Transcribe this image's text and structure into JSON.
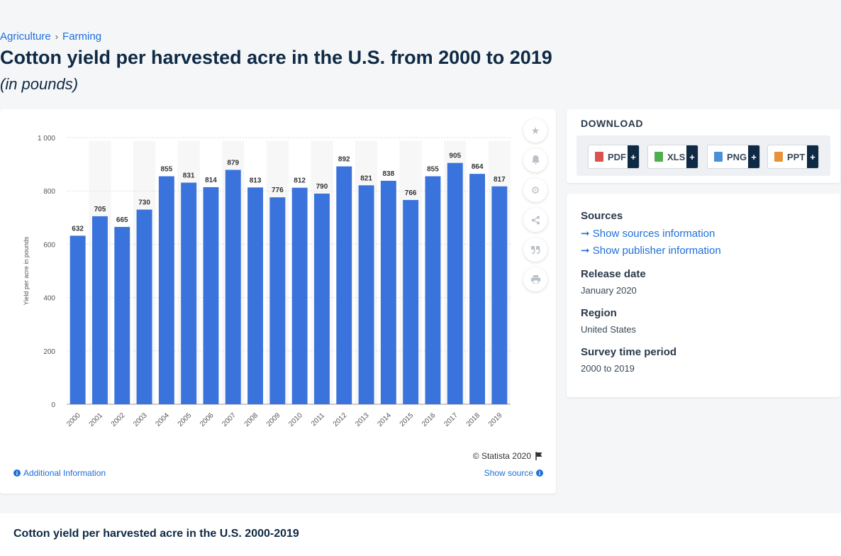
{
  "breadcrumb": {
    "items": [
      "Agriculture",
      "Farming"
    ],
    "separator": "›"
  },
  "page": {
    "title": "Cotton yield per harvested acre in the U.S. from 2000 to 2019",
    "subtitle": "(in pounds)"
  },
  "chart_card": {
    "copyright": "© Statista 2020",
    "additional_info": "Additional Information",
    "show_source": "Show source"
  },
  "download": {
    "title": "DOWNLOAD",
    "buttons": [
      {
        "label": "PDF",
        "color": "#d9534f"
      },
      {
        "label": "XLS",
        "color": "#4caf50"
      },
      {
        "label": "PNG",
        "color": "#4a90d9"
      },
      {
        "label": "PPT",
        "color": "#e8903a"
      }
    ],
    "plus": "+"
  },
  "info": {
    "sources_heading": "Sources",
    "show_sources": "Show sources information",
    "show_publisher": "Show publisher information",
    "release_heading": "Release date",
    "release_value": "January 2020",
    "region_heading": "Region",
    "region_value": "United States",
    "survey_heading": "Survey time period",
    "survey_value": "2000 to 2019"
  },
  "bottom": {
    "title": "Cotton yield per harvested acre in the U.S. 2000-2019"
  },
  "chart_data": {
    "type": "bar",
    "categories": [
      "2000",
      "2001",
      "2002",
      "2003",
      "2004",
      "2005",
      "2006",
      "2007",
      "2008",
      "2009",
      "2010",
      "2011",
      "2012",
      "2013",
      "2014",
      "2015",
      "2016",
      "2017",
      "2018",
      "2019"
    ],
    "values": [
      632,
      705,
      665,
      730,
      855,
      831,
      814,
      879,
      813,
      776,
      812,
      790,
      892,
      821,
      838,
      766,
      855,
      905,
      864,
      817
    ],
    "ylabel": "Yield per acre in pounds",
    "ylim": [
      0,
      1000
    ],
    "yticks": [
      0,
      200,
      400,
      600,
      800,
      1000
    ],
    "ytick_labels": [
      "0",
      "200",
      "400",
      "600",
      "800",
      "1 000"
    ],
    "bar_color": "#3b73dc",
    "grid": true,
    "data_labels": true
  }
}
